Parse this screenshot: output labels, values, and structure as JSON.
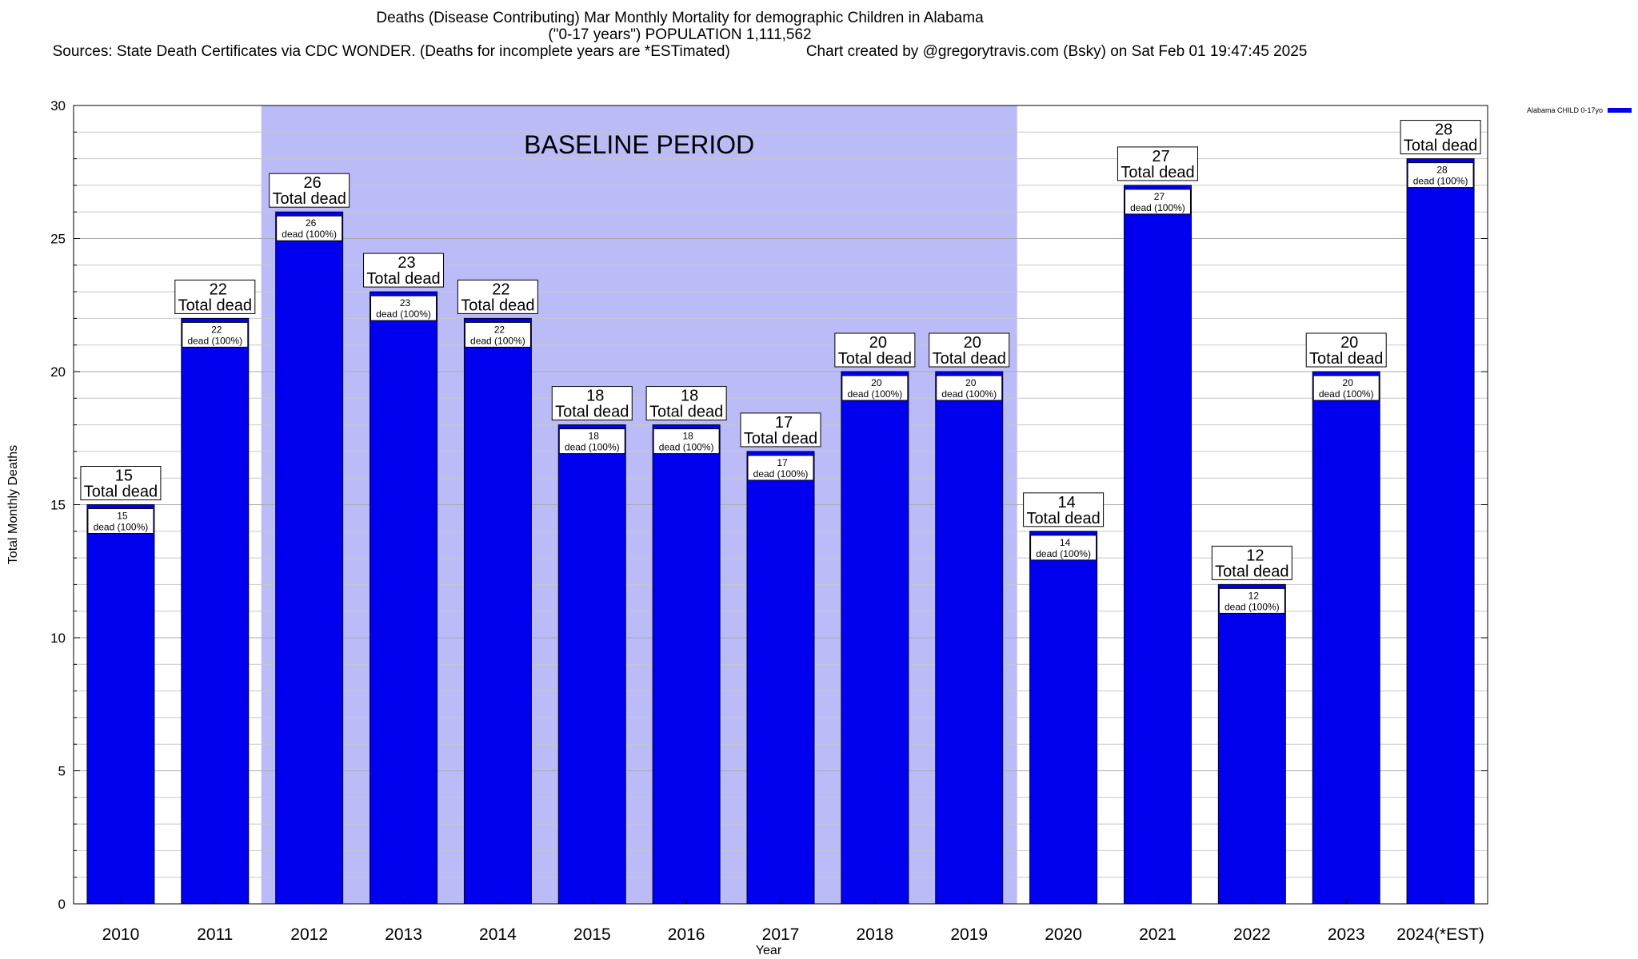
{
  "chart_data": {
    "type": "bar",
    "title": "Deaths (Disease Contributing) Mar Monthly Mortality for demographic Children in Alabama",
    "subtitle": "(\"0-17 years\") POPULATION 1,111,562",
    "sources": "Sources: State Death Certificates via CDC WONDER. (Deaths for incomplete years are *ESTimated)",
    "credit": "Chart created by @gregorytravis.com (Bsky) on Sat Feb 01 19:47:45 2025",
    "xlabel": "Year",
    "ylabel": "Total Monthly Deaths",
    "ylim": [
      0,
      30
    ],
    "yticks": [
      0,
      5,
      10,
      15,
      20,
      25,
      30
    ],
    "grid": true,
    "legend": {
      "label": "Alabama CHILD 0-17yo",
      "color": "#0000ee",
      "placement": "top-right"
    },
    "baseline": {
      "label": "BASELINE PERIOD",
      "from": "2012",
      "to": "2019",
      "color": "#bbbbf8"
    },
    "categories": [
      "2010",
      "2011",
      "2012",
      "2013",
      "2014",
      "2015",
      "2016",
      "2017",
      "2018",
      "2019",
      "2020",
      "2021",
      "2022",
      "2023",
      "2024(*EST)"
    ],
    "series": [
      {
        "name": "Alabama CHILD 0-17yo",
        "color": "#0000ee",
        "values": [
          15,
          22,
          26,
          23,
          22,
          18,
          18,
          17,
          20,
          20,
          14,
          27,
          12,
          20,
          28
        ]
      }
    ],
    "label_total_suffix": "Total dead",
    "label_inner_suffix": "dead (100%)"
  }
}
